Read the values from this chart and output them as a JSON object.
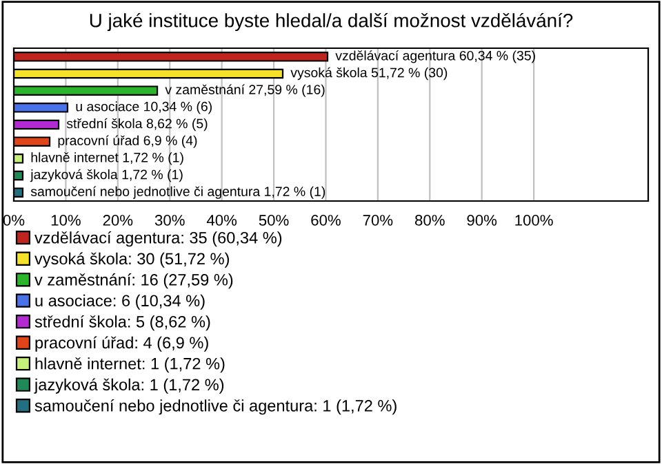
{
  "chart_data": {
    "type": "bar",
    "orientation": "horizontal",
    "title": "U jaké instituce byste hledal/a další možnost vzdělávání?",
    "categories": [
      null,
      null,
      null,
      null,
      null,
      null,
      null,
      null,
      null
    ],
    "series": [
      {
        "name": "vzdělávací agentura: 35 (60,34 %)",
        "color": "#c0251d",
        "values": [
          60.34,
          null,
          null,
          null,
          null,
          null,
          null,
          null,
          null
        ],
        "value_labels": [
          "vzdělávací agentura 60,34 % (35)",
          null,
          null,
          null,
          null,
          null,
          null,
          null,
          null
        ]
      },
      {
        "name": "vysoká škola: 30 (51,72 %)",
        "color": "#f5e12a",
        "values": [
          null,
          51.72,
          null,
          null,
          null,
          null,
          null,
          null,
          null
        ],
        "value_labels": [
          null,
          "vysoká škola 51,72 % (30)",
          null,
          null,
          null,
          null,
          null,
          null,
          null
        ]
      },
      {
        "name": "v zaměstnání: 16 (27,59 %)",
        "color": "#2ab52a",
        "values": [
          null,
          null,
          27.59,
          null,
          null,
          null,
          null,
          null,
          null
        ],
        "value_labels": [
          null,
          null,
          "v zaměstnání 27,59 % (16)",
          null,
          null,
          null,
          null,
          null,
          null
        ]
      },
      {
        "name": "u asociace: 6 (10,34 %)",
        "color": "#4a72e8",
        "values": [
          null,
          null,
          null,
          10.34,
          null,
          null,
          null,
          null,
          null
        ],
        "value_labels": [
          null,
          null,
          null,
          "u asociace 10,34 % (6)",
          null,
          null,
          null,
          null,
          null
        ]
      },
      {
        "name": "střední škola: 5 (8,62 %)",
        "color": "#b42ad2",
        "values": [
          null,
          null,
          null,
          null,
          8.62,
          null,
          null,
          null,
          null
        ],
        "value_labels": [
          null,
          null,
          null,
          null,
          "střední škola 8,62 % (5)",
          null,
          null,
          null,
          null
        ]
      },
      {
        "name": "pracovní úřad: 4 (6,9 %)",
        "color": "#e0451a",
        "values": [
          null,
          null,
          null,
          null,
          null,
          6.9,
          null,
          null,
          null
        ],
        "value_labels": [
          null,
          null,
          null,
          null,
          null,
          "pracovní úřad 6,9 % (4)",
          null,
          null,
          null
        ]
      },
      {
        "name": "hlavně internet: 1 (1,72 %)",
        "color": "#c6f07a",
        "values": [
          null,
          null,
          null,
          null,
          null,
          null,
          1.72,
          null,
          null
        ],
        "value_labels": [
          null,
          null,
          null,
          null,
          null,
          null,
          "hlavně internet 1,72 % (1)",
          null,
          null
        ]
      },
      {
        "name": "jazyková škola: 1 (1,72 %)",
        "color": "#1e8a55",
        "values": [
          null,
          null,
          null,
          null,
          null,
          null,
          null,
          1.72,
          null
        ],
        "value_labels": [
          null,
          null,
          null,
          null,
          null,
          null,
          null,
          "jazyková škola 1,72 % (1)",
          null
        ]
      },
      {
        "name": "samoučení nebo jednotlive či agentura: 1 (1,72 %)",
        "color": "#22707f",
        "values": [
          null,
          null,
          null,
          null,
          null,
          null,
          null,
          null,
          1.72
        ],
        "value_labels": [
          null,
          null,
          null,
          null,
          null,
          null,
          null,
          null,
          "samoučení nebo jednotlive či agentura 1,72 % (1)"
        ]
      }
    ],
    "xlim": [
      0,
      122
    ],
    "xticks": [
      {
        "value": 0,
        "label": "0%"
      },
      {
        "value": 10,
        "label": "10%"
      },
      {
        "value": 20,
        "label": "20%"
      },
      {
        "value": 30,
        "label": "30%"
      },
      {
        "value": 40,
        "label": "40%"
      },
      {
        "value": 50,
        "label": "50%"
      },
      {
        "value": 60,
        "label": "60%"
      },
      {
        "value": 70,
        "label": "70%"
      },
      {
        "value": 80,
        "label": "80%"
      },
      {
        "value": 90,
        "label": "90%"
      },
      {
        "value": 100,
        "label": "100%"
      }
    ],
    "grid": "x",
    "legend": "bottom"
  }
}
